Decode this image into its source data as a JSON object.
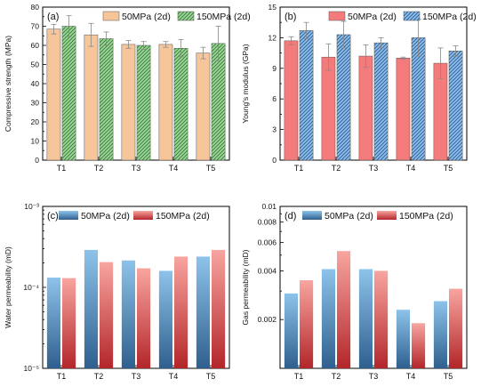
{
  "chart_data": [
    {
      "type": "bar",
      "panel_label": "(a)",
      "categories": [
        "T1",
        "T2",
        "T3",
        "T4",
        "T5"
      ],
      "ylabel": "Compressive strength (MPa)",
      "xlabel": "",
      "ylim": [
        0,
        80
      ],
      "yticks": [
        0,
        10,
        20,
        30,
        40,
        50,
        60,
        70,
        80
      ],
      "yscale": "linear",
      "legend_position": "top-center",
      "series": [
        {
          "name": "50MPa (2d)",
          "values": [
            68.5,
            65.5,
            60.5,
            60.5,
            56.0
          ],
          "errors": [
            2.5,
            6.0,
            2.0,
            1.5,
            3.0
          ],
          "fill": "#f7c59a",
          "pattern": "none"
        },
        {
          "name": "150MPa (2d)",
          "values": [
            70.0,
            63.5,
            60.0,
            58.5,
            61.0
          ],
          "errors": [
            5.5,
            3.5,
            2.0,
            4.5,
            9.0
          ],
          "fill": "#9fd39a",
          "pattern": "hatch"
        }
      ]
    },
    {
      "type": "bar",
      "panel_label": "(b)",
      "categories": [
        "T1",
        "T2",
        "T3",
        "T4",
        "T5"
      ],
      "ylabel": "Young's modulus (GPa)",
      "xlabel": "",
      "ylim": [
        0,
        15
      ],
      "yticks": [
        0,
        3,
        6,
        9,
        12,
        15
      ],
      "yscale": "linear",
      "legend_position": "top-center",
      "series": [
        {
          "name": "50MPa (2d)",
          "values": [
            11.7,
            10.1,
            10.2,
            10.0,
            9.5
          ],
          "errors": [
            0.4,
            1.3,
            1.1,
            0.1,
            1.5
          ],
          "fill": "#f47b7b",
          "pattern": "none"
        },
        {
          "name": "150MPa (2d)",
          "values": [
            12.7,
            12.3,
            11.5,
            12.0,
            10.7
          ],
          "errors": [
            0.8,
            1.3,
            0.5,
            1.8,
            0.5
          ],
          "fill": "#8fbde8",
          "pattern": "hatch"
        }
      ]
    },
    {
      "type": "bar",
      "panel_label": "(c)",
      "categories": [
        "T1",
        "T2",
        "T3",
        "T4",
        "T5"
      ],
      "ylabel": "Water permeability (mD)",
      "xlabel": "",
      "ylim": [
        1e-05,
        0.001
      ],
      "yscale": "log",
      "ytick_labels": [
        "10⁻⁵",
        "10⁻⁴",
        "10⁻³"
      ],
      "legend_position": "top-center",
      "series": [
        {
          "name": "50MPa (2d)",
          "values": [
            0.000132,
            0.00029,
            0.000215,
            0.00016,
            0.00024
          ],
          "gradient": [
            "#8dc3ea",
            "#2f5f8e"
          ]
        },
        {
          "name": "150MPa (2d)",
          "values": [
            0.00013,
            0.000205,
            0.000172,
            0.00024,
            0.00029
          ],
          "gradient": [
            "#f8a5a0",
            "#b3262a"
          ]
        }
      ]
    },
    {
      "type": "bar",
      "panel_label": "(d)",
      "categories": [
        "T1",
        "T2",
        "T3",
        "T4",
        "T5"
      ],
      "ylabel": "Gas permeability (mD)",
      "xlabel": "",
      "ylim": [
        0.001,
        0.01
      ],
      "yscale": "log",
      "yticks": [
        0.002,
        0.004,
        0.006,
        0.008,
        0.01
      ],
      "ytick_labels": [
        "0.002",
        "0.004",
        "0.006",
        "0.008",
        "0.01"
      ],
      "legend_position": "top-center",
      "series": [
        {
          "name": "50MPa (2d)",
          "values": [
            0.0029,
            0.0041,
            0.0041,
            0.0023,
            0.0026
          ],
          "gradient": [
            "#8dc3ea",
            "#2f5f8e"
          ]
        },
        {
          "name": "150MPa (2d)",
          "values": [
            0.0035,
            0.0053,
            0.004,
            0.0019,
            0.0031
          ],
          "gradient": [
            "#f8a5a0",
            "#b3262a"
          ]
        }
      ]
    }
  ]
}
